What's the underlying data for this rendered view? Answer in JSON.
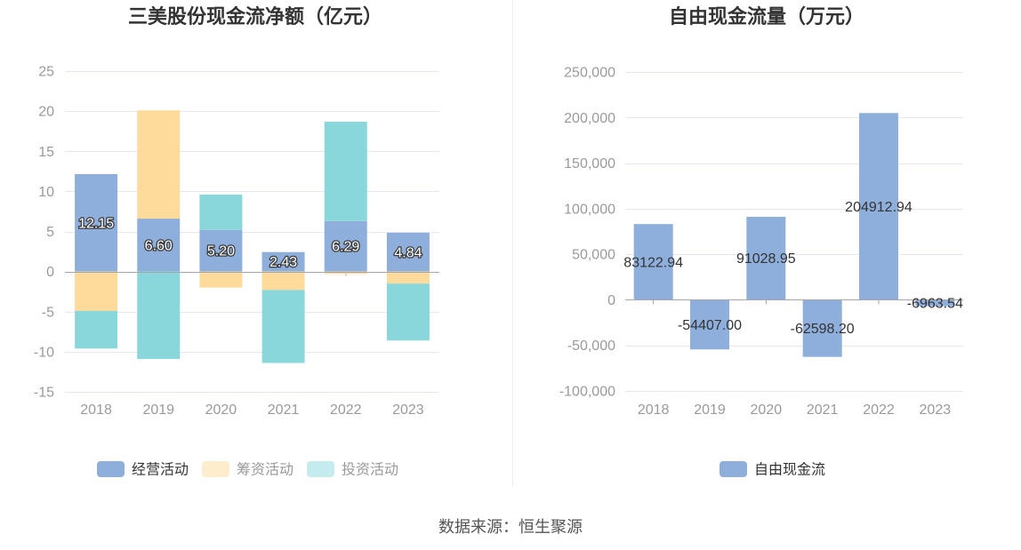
{
  "chart_data": [
    {
      "type": "bar",
      "stacked": true,
      "title": "三美股份现金流净额（亿元）",
      "xlabel": "",
      "ylabel": "",
      "categories": [
        "2018",
        "2019",
        "2020",
        "2021",
        "2022",
        "2023"
      ],
      "ylim": [
        -15,
        25
      ],
      "yticks": [
        25,
        20,
        15,
        10,
        5,
        0,
        -5,
        -10,
        -15
      ],
      "ytick_labels": [
        "25",
        "20",
        "15",
        "10",
        "5",
        "0",
        "-5",
        "-10",
        "-15"
      ],
      "grid": true,
      "legend_position": "bottom",
      "series": [
        {
          "name": "经营活动",
          "color": "#8eaedb",
          "values": [
            12.15,
            6.6,
            5.2,
            2.43,
            6.29,
            4.84
          ],
          "labels": [
            "12.15",
            "6.60",
            "5.20",
            "2.43",
            "6.29",
            "4.84"
          ]
        },
        {
          "name": "筹资活动",
          "color": "#fedb9b",
          "values": [
            -4.9,
            13.5,
            -2.0,
            -2.3,
            -0.3,
            -1.5
          ]
        },
        {
          "name": "投资活动",
          "color": "#8ad7db",
          "values": [
            -4.7,
            -10.9,
            4.4,
            -9.1,
            12.4,
            -7.1
          ]
        }
      ]
    },
    {
      "type": "bar",
      "stacked": false,
      "title": "自由现金流量（万元）",
      "xlabel": "",
      "ylabel": "",
      "categories": [
        "2018",
        "2019",
        "2020",
        "2021",
        "2022",
        "2023"
      ],
      "ylim": [
        -100000,
        250000
      ],
      "yticks": [
        250000,
        200000,
        150000,
        100000,
        50000,
        0,
        -50000,
        -100000
      ],
      "ytick_labels": [
        "250,000",
        "200,000",
        "150,000",
        "100,000",
        "50,000",
        "0",
        "-50,000",
        "-100,000"
      ],
      "grid": true,
      "legend_position": "bottom",
      "series": [
        {
          "name": "自由现金流",
          "color": "#8eaedb",
          "values": [
            83122.94,
            -54407.0,
            91028.95,
            -62598.2,
            204912.94,
            -6963.54
          ],
          "labels": [
            "83122.94",
            "-54407.00",
            "91028.95",
            "-62598.20",
            "204912.94",
            "-6963.54"
          ]
        }
      ]
    }
  ],
  "source": "数据来源：恒生聚源"
}
